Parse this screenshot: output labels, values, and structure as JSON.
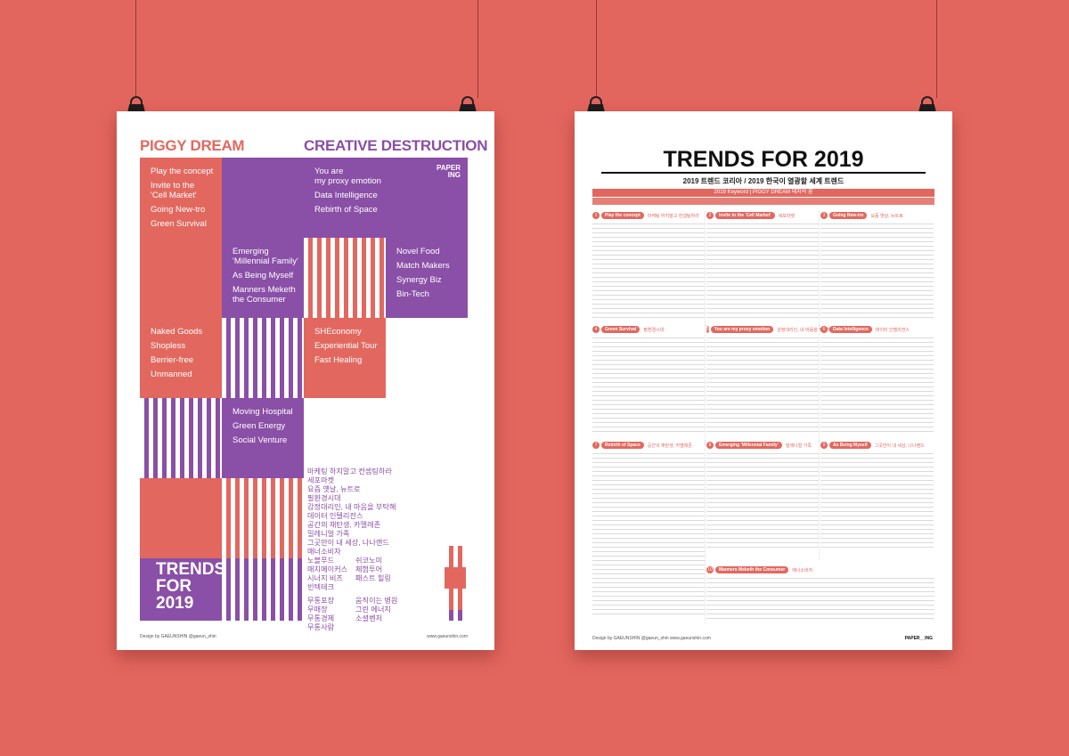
{
  "left": {
    "title_left": "PIGGY DREAM",
    "title_right": "CREATIVE DESTRUCTION",
    "logo": "PAPER\nING",
    "blocks": [
      [
        "Play the concept",
        "Invite to the\n'Cell Market'",
        "Going New-tro",
        "Green Survival"
      ],
      [
        "You are\nmy proxy emotion",
        "Data Intelligence",
        "Rebirth of Space"
      ],
      [
        "Emerging\n'Millennial Family'",
        "As Being Myself",
        "Manners Meketh\nthe Consumer"
      ],
      [
        "Novel Food",
        "Match Makers",
        "Synergy Biz",
        "Bin-Tech"
      ],
      [
        "Naked Goods",
        "Shopless",
        "Berrier-free",
        "Unmanned"
      ],
      [
        "SHEconomy",
        "Experiential Tour",
        "Fast Healing"
      ],
      [
        "Moving Hospital",
        "Green Energy",
        "Social Venture"
      ]
    ],
    "kr_list1": [
      "마케팅 하지말고 컨셉팅하라",
      "세포마켓",
      "요즘 옛날, 뉴트로",
      "필환경시대",
      "감정대리인, 내 마음을 부탁해",
      "데이터 인텔리전스",
      "공간의 재탄생, 카멜레존",
      "밀레니얼 가족",
      "그곳만이 내 세상, 나나랜드",
      "매너소비자"
    ],
    "kr_list2": [
      "노블푸드",
      "매치메이커스",
      "시너지 비즈",
      "빈텍테크"
    ],
    "kr_list3": [
      "쉬코노미",
      "체험투어",
      "패스트 힐링"
    ],
    "kr_list4": [
      "무통포장",
      "무매장",
      "무통경제",
      "무통사람"
    ],
    "kr_list5": [
      "움직이는 병원",
      "그린 에너지",
      "소셜벤처"
    ],
    "big_title": "TRENDS\nFOR\n2019",
    "credit": "Design by GAEUNSHIN    @gaeun_shin",
    "site": "www.gaeunshin.com"
  },
  "right": {
    "title": "TRENDS FOR 2019",
    "subtitle": "2019 트렌드 코리아 / 2019 한국이 열광할 세계 트렌드",
    "keyword_bar": "2019 Keyword | PIGGY DREAM 돼지의 꿈",
    "sections": [
      {
        "n": "1",
        "t": "Play the concept",
        "k": "마케팅 하지말고 컨셉팅하라"
      },
      {
        "n": "2",
        "t": "Invite to the 'Cell Market'",
        "k": "세포마켓"
      },
      {
        "n": "3",
        "t": "Going New-tro",
        "k": "요즘 옛날, 뉴트로"
      },
      {
        "n": "4",
        "t": "Green Survival",
        "k": "필환경시대"
      },
      {
        "n": "5",
        "t": "You are my proxy emotion",
        "k": "감정대리인, 내 마음을 부탁해"
      },
      {
        "n": "6",
        "t": "Data Intelligence",
        "k": "데이터 인텔리전스"
      },
      {
        "n": "7",
        "t": "Rebirth of Space",
        "k": "공간의 재탄생, 카멜레존"
      },
      {
        "n": "8",
        "t": "Emerging 'Millennial Family'",
        "k": "밀레니얼 가족"
      },
      {
        "n": "9",
        "t": "As Being Myself",
        "k": "그곳만이 내 세상, 나나랜드"
      },
      {
        "n": "10",
        "t": "Manners Meketh the Consumer",
        "k": "매너소비자"
      }
    ],
    "credit": "Design by GAEUNSHIN    @gaeun_shin    www.gaeunshin.com",
    "logo": "PAPER__ING"
  }
}
